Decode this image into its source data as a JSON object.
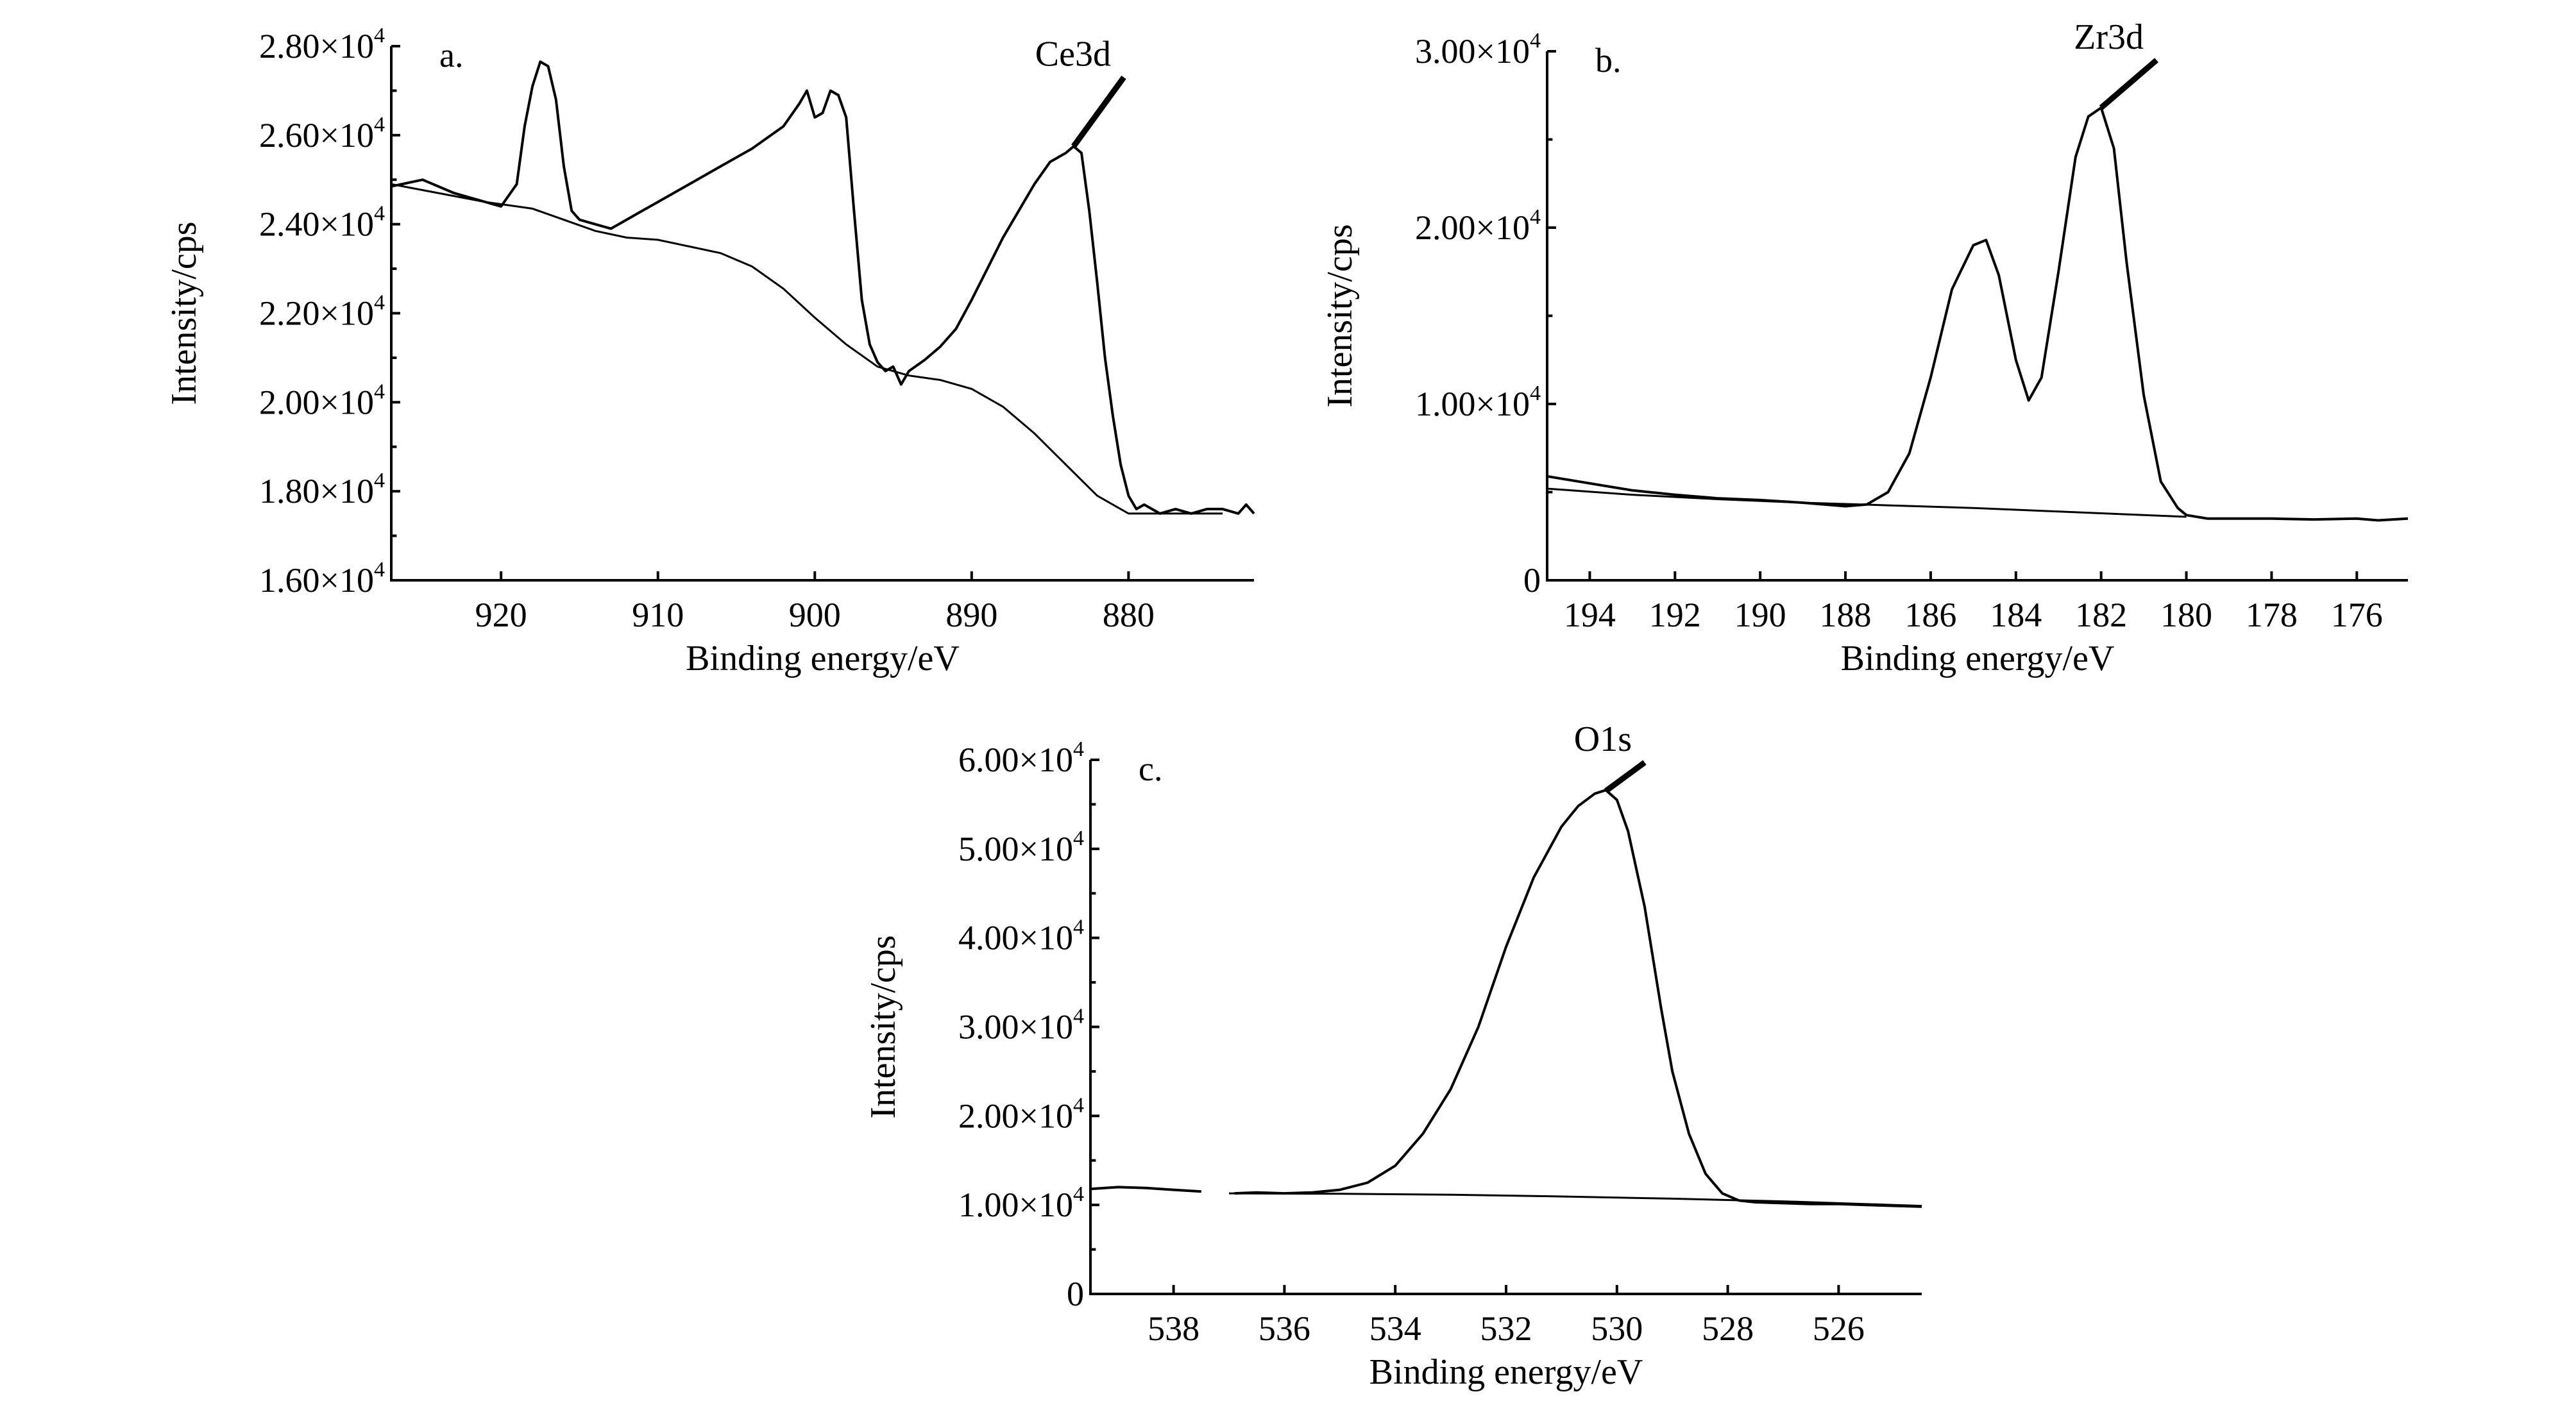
{
  "chart_data": [
    {
      "type": "line",
      "panel": "a.",
      "peak_label": "Ce3d",
      "xlabel": "Binding energy/eV",
      "ylabel": "Intensity/cps",
      "xlim": [
        927,
        872
      ],
      "ylim": [
        16000,
        28000
      ],
      "x_ticks": [
        920,
        910,
        900,
        890,
        880
      ],
      "y_ticks": [
        {
          "value": 16000,
          "mantissa": "1.60",
          "sci": true
        },
        {
          "value": 18000,
          "mantissa": "1.80",
          "sci": true
        },
        {
          "value": 20000,
          "mantissa": "2.00",
          "sci": true
        },
        {
          "value": 22000,
          "mantissa": "2.20",
          "sci": true
        },
        {
          "value": 24000,
          "mantissa": "2.40",
          "sci": true
        },
        {
          "value": 26000,
          "mantissa": "2.60",
          "sci": true
        },
        {
          "value": 28000,
          "mantissa": "2.80",
          "sci": true
        }
      ],
      "peak_marker": {
        "x": [
          883.5,
          880.3
        ],
        "y": [
          25750,
          27300
        ]
      },
      "series": [
        {
          "name": "spectrum",
          "x": [
            927,
            925,
            923,
            921,
            920,
            919,
            918.5,
            918,
            917.5,
            917,
            916.5,
            916,
            915.5,
            915,
            914,
            913,
            912,
            911,
            910,
            908,
            906,
            904,
            902,
            901,
            900.5,
            900,
            899.5,
            899,
            898.5,
            898,
            897.5,
            897,
            896.5,
            896,
            895.5,
            895,
            894.5,
            894,
            893,
            892,
            891,
            890,
            889,
            888,
            887,
            886,
            885,
            884,
            883.5,
            883,
            882.5,
            882,
            881.5,
            881,
            880.5,
            880,
            879.5,
            879,
            878,
            877,
            876,
            875,
            874,
            873,
            872.5,
            872
          ],
          "y": [
            24850,
            25000,
            24700,
            24500,
            24400,
            24900,
            26200,
            27100,
            27650,
            27550,
            26800,
            25300,
            24300,
            24100,
            24000,
            23900,
            24100,
            24300,
            24500,
            24900,
            25300,
            25700,
            26200,
            26700,
            27000,
            26400,
            26500,
            27000,
            26900,
            26400,
            24300,
            22300,
            21300,
            20900,
            20700,
            20800,
            20400,
            20700,
            20950,
            21250,
            21650,
            22300,
            23000,
            23700,
            24300,
            24900,
            25400,
            25600,
            25750,
            25600,
            24300,
            22700,
            21000,
            19700,
            18600,
            17900,
            17600,
            17700,
            17500,
            17600,
            17500,
            17600,
            17600,
            17500,
            17700,
            17500
          ]
        },
        {
          "name": "background",
          "x": [
            927,
            924,
            921,
            918,
            916,
            914,
            912,
            910,
            908,
            906,
            904,
            902,
            900,
            898,
            896,
            894,
            892,
            890,
            888,
            886,
            884,
            882,
            880,
            878,
            876,
            874
          ],
          "y": [
            24900,
            24700,
            24500,
            24350,
            24100,
            23850,
            23700,
            23650,
            23500,
            23350,
            23050,
            22550,
            21900,
            21300,
            20800,
            20600,
            20500,
            20300,
            19900,
            19300,
            18600,
            17900,
            17500,
            17500,
            17500,
            17500
          ]
        }
      ]
    },
    {
      "type": "line",
      "panel": "b.",
      "peak_label": "Zr3d",
      "xlabel": "Binding energy/eV",
      "ylabel": "Intensity/cps",
      "xlim": [
        195,
        174.8
      ],
      "ylim": [
        0,
        30000
      ],
      "x_ticks": [
        194,
        192,
        190,
        188,
        186,
        184,
        182,
        180,
        178,
        176
      ],
      "y_ticks": [
        {
          "value": 0,
          "mantissa": "0",
          "sci": false
        },
        {
          "value": 10000,
          "mantissa": "1.00",
          "sci": true
        },
        {
          "value": 20000,
          "mantissa": "2.00",
          "sci": true
        },
        {
          "value": 30000,
          "mantissa": "3.00",
          "sci": true
        }
      ],
      "peak_marker": {
        "x": [
          182,
          180.7
        ],
        "y": [
          26800,
          29500
        ]
      },
      "series": [
        {
          "name": "spectrum",
          "x": [
            195,
            194,
            193,
            192,
            191,
            190,
            189,
            188,
            187.5,
            187,
            186.5,
            186,
            185.5,
            185,
            184.7,
            184.4,
            184,
            183.7,
            183.4,
            183,
            182.6,
            182.3,
            182,
            181.7,
            181.4,
            181,
            180.6,
            180.2,
            180,
            179.5,
            179,
            178,
            177,
            176,
            175.5,
            174.8
          ],
          "y": [
            5900,
            5500,
            5100,
            4850,
            4650,
            4550,
            4400,
            4200,
            4300,
            5000,
            7200,
            11500,
            16500,
            19000,
            19300,
            17300,
            12500,
            10200,
            11500,
            17500,
            24000,
            26300,
            26800,
            24500,
            18000,
            10500,
            5600,
            4100,
            3700,
            3500,
            3500,
            3500,
            3450,
            3500,
            3400,
            3500
          ]
        },
        {
          "name": "background",
          "x": [
            195,
            193,
            191,
            189,
            187,
            185,
            183,
            181,
            180
          ],
          "y": [
            5200,
            4850,
            4600,
            4400,
            4250,
            4100,
            3900,
            3700,
            3600
          ]
        }
      ]
    },
    {
      "type": "line",
      "panel": "c.",
      "peak_label": "O1s",
      "xlabel": "Binding energy/eV",
      "ylabel": "Intensity/cps",
      "xlim": [
        539.5,
        524.5
      ],
      "ylim": [
        0,
        60000
      ],
      "x_ticks": [
        538,
        536,
        534,
        532,
        530,
        528,
        526
      ],
      "y_ticks": [
        {
          "value": 0,
          "mantissa": "0",
          "sci": false
        },
        {
          "value": 10000,
          "mantissa": "1.00",
          "sci": true
        },
        {
          "value": 20000,
          "mantissa": "2.00",
          "sci": true
        },
        {
          "value": 30000,
          "mantissa": "3.00",
          "sci": true
        },
        {
          "value": 40000,
          "mantissa": "4.00",
          "sci": true
        },
        {
          "value": 50000,
          "mantissa": "5.00",
          "sci": true
        },
        {
          "value": 60000,
          "mantissa": "6.00",
          "sci": true
        }
      ],
      "peak_marker": {
        "x": [
          530.2,
          529.5
        ],
        "y": [
          56500,
          59700
        ]
      },
      "series": [
        {
          "name": "spectrum-left",
          "x": [
            539.5,
            539,
            538.5,
            538,
            537.5
          ],
          "y": [
            11800,
            12000,
            11900,
            11700,
            11500
          ]
        },
        {
          "name": "spectrum",
          "x": [
            536.9,
            536.5,
            536,
            535.5,
            535,
            534.5,
            534,
            533.5,
            533,
            532.5,
            532,
            531.5,
            531,
            530.7,
            530.4,
            530.2,
            530,
            529.8,
            529.5,
            529.2,
            529,
            528.7,
            528.4,
            528.1,
            527.8,
            527.5,
            527,
            526.5,
            526,
            525.5,
            525,
            524.5
          ],
          "y": [
            11300,
            11400,
            11300,
            11400,
            11700,
            12500,
            14400,
            18000,
            23000,
            30000,
            39000,
            46800,
            52500,
            54800,
            56200,
            56600,
            55500,
            52000,
            43500,
            32000,
            25000,
            18000,
            13500,
            11300,
            10500,
            10300,
            10200,
            10100,
            10100,
            10000,
            9900,
            9800
          ]
        },
        {
          "name": "background",
          "x": [
            537,
            535,
            533,
            531,
            529,
            527,
            525,
            524.5
          ],
          "y": [
            11300,
            11250,
            11150,
            10950,
            10700,
            10400,
            10000,
            9900
          ]
        }
      ]
    }
  ]
}
